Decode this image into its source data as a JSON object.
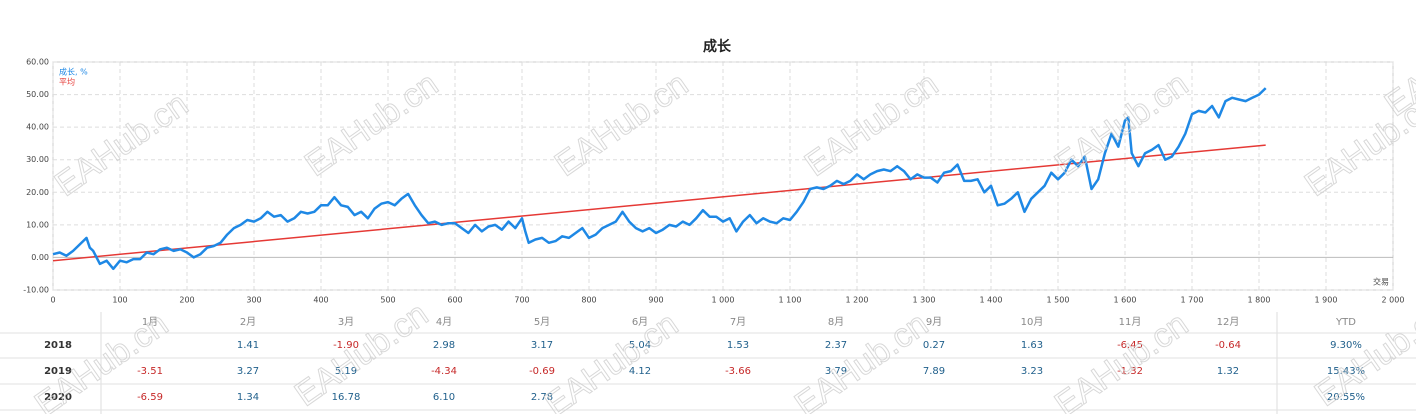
{
  "chart_data": {
    "type": "line",
    "title": "成长",
    "x_label": "交易",
    "xlim": [
      0,
      2000
    ],
    "xticks": [
      0,
      100,
      200,
      300,
      400,
      500,
      600,
      700,
      800,
      900,
      {
        "value": 1000,
        "label": "1 000"
      },
      {
        "value": 1100,
        "label": "1 100"
      },
      {
        "value": 1200,
        "label": "1 200"
      },
      {
        "value": 1300,
        "label": "1 300"
      },
      {
        "value": 1400,
        "label": "1 400"
      },
      {
        "value": 1500,
        "label": "1 500"
      },
      {
        "value": 1600,
        "label": "1 600"
      },
      {
        "value": 1700,
        "label": "1 700"
      },
      {
        "value": 1800,
        "label": "1 800"
      },
      {
        "value": 1900,
        "label": "1 900"
      },
      {
        "value": 2000,
        "label": "2 000"
      }
    ],
    "ylim": [
      -10,
      60
    ],
    "yticks": [
      {
        "value": -10,
        "label": "-10.00"
      },
      {
        "value": 0,
        "label": "0.00"
      },
      {
        "value": 10,
        "label": "10.00"
      },
      {
        "value": 20,
        "label": "20.00"
      },
      {
        "value": 30,
        "label": "30.00"
      },
      {
        "value": 40,
        "label": "40.00"
      },
      {
        "value": 50,
        "label": "50.00"
      },
      {
        "value": 60,
        "label": "60.00"
      }
    ],
    "grid": true,
    "legend": "upper left",
    "series": [
      {
        "name": "成长, %",
        "color": "#1e88e5",
        "x": [
          0,
          10,
          20,
          30,
          40,
          50,
          55,
          60,
          70,
          80,
          90,
          100,
          110,
          120,
          130,
          140,
          150,
          160,
          170,
          180,
          190,
          200,
          210,
          220,
          230,
          240,
          250,
          260,
          270,
          280,
          290,
          300,
          310,
          320,
          330,
          340,
          350,
          360,
          370,
          380,
          390,
          400,
          410,
          420,
          430,
          440,
          450,
          460,
          470,
          480,
          490,
          500,
          510,
          520,
          530,
          540,
          550,
          560,
          570,
          580,
          590,
          600,
          610,
          620,
          630,
          640,
          650,
          660,
          670,
          680,
          690,
          700,
          705,
          710,
          720,
          730,
          740,
          750,
          760,
          770,
          780,
          790,
          800,
          810,
          820,
          830,
          840,
          850,
          860,
          870,
          880,
          890,
          900,
          910,
          920,
          930,
          940,
          950,
          960,
          970,
          980,
          990,
          1000,
          1010,
          1020,
          1030,
          1040,
          1050,
          1060,
          1070,
          1080,
          1090,
          1100,
          1110,
          1120,
          1130,
          1140,
          1150,
          1160,
          1170,
          1180,
          1190,
          1200,
          1210,
          1220,
          1230,
          1240,
          1250,
          1260,
          1270,
          1280,
          1290,
          1300,
          1310,
          1320,
          1330,
          1340,
          1350,
          1360,
          1370,
          1380,
          1390,
          1400,
          1410,
          1420,
          1430,
          1440,
          1450,
          1460,
          1470,
          1480,
          1490,
          1500,
          1510,
          1520,
          1530,
          1540,
          1550,
          1560,
          1570,
          1580,
          1590,
          1600,
          1605,
          1610,
          1620,
          1630,
          1640,
          1650,
          1660,
          1670,
          1680,
          1690,
          1700,
          1710,
          1720,
          1730,
          1740,
          1750,
          1760,
          1770,
          1780,
          1790,
          1800,
          1810
        ],
        "values": [
          1,
          1.5,
          0.5,
          2,
          4,
          6,
          3,
          2,
          -2,
          -1,
          -3.5,
          -1,
          -1.5,
          -0.5,
          -0.5,
          1.5,
          1,
          2.5,
          3,
          2,
          2.5,
          1.5,
          0,
          1,
          3,
          3.5,
          4.5,
          7,
          9,
          10,
          11.5,
          11,
          12,
          14,
          12.5,
          13,
          11,
          12,
          14,
          13.5,
          14,
          16,
          16,
          18.5,
          16,
          15.5,
          13,
          14,
          12,
          15,
          16.5,
          17,
          16,
          18,
          19.5,
          16,
          13,
          10.5,
          11,
          10,
          10.5,
          10.5,
          9,
          7.5,
          10,
          8,
          9.5,
          10,
          8.5,
          11,
          9,
          12,
          8,
          4.5,
          5.5,
          6,
          4.5,
          5,
          6.5,
          6,
          7.5,
          9,
          6,
          7,
          9,
          10,
          11,
          14,
          11,
          9,
          8,
          9,
          7.5,
          8.5,
          10,
          9.5,
          11,
          10,
          12,
          14.5,
          12.5,
          12.5,
          11,
          12,
          8,
          11,
          13,
          10.5,
          12,
          11,
          10.5,
          12,
          11.5,
          14,
          17,
          21,
          21.5,
          21,
          22,
          23.5,
          22.5,
          23.5,
          25.5,
          24,
          25.5,
          26.5,
          27,
          26.5,
          28,
          26.5,
          24,
          25.5,
          24.5,
          24.5,
          23,
          26,
          26.5,
          28.5,
          23.5,
          23.5,
          24,
          20,
          22,
          16,
          16.5,
          18,
          20,
          14,
          18,
          20,
          22,
          26,
          24,
          26,
          30,
          28,
          31,
          21,
          24,
          32,
          38,
          34,
          42,
          43,
          32,
          28,
          32,
          33,
          34.5,
          30,
          31,
          34,
          38,
          44,
          45,
          44.5,
          46.5,
          43,
          48,
          49,
          48.5,
          48,
          49,
          50,
          52
        ]
      },
      {
        "name": "平均",
        "color": "#e53935",
        "x": [
          0,
          1810
        ],
        "values": [
          -1,
          34.5
        ]
      }
    ]
  },
  "watermark": "EAHub.cn",
  "table": {
    "header": [
      "1月",
      "2月",
      "3月",
      "4月",
      "5月",
      "6月",
      "7月",
      "8月",
      "9月",
      "10月",
      "11月",
      "12月",
      "YTD"
    ],
    "rows": [
      {
        "label": "2018",
        "cells": [
          null,
          "1.41",
          "-1.90",
          "2.98",
          "3.17",
          "5.04",
          "1.53",
          "2.37",
          "0.27",
          "1.63",
          "-6.45",
          "-0.64",
          "9.30%"
        ]
      },
      {
        "label": "2019",
        "cells": [
          "-3.51",
          "3.27",
          "5.19",
          "-4.34",
          "-0.69",
          "4.12",
          "-3.66",
          "3.79",
          "7.89",
          "3.23",
          "-1.32",
          "1.32",
          "15.43%"
        ]
      },
      {
        "label": "2020",
        "cells": [
          "-6.59",
          "1.34",
          "16.78",
          "6.10",
          "2.78",
          null,
          null,
          null,
          null,
          null,
          null,
          null,
          "20.55%"
        ]
      }
    ]
  }
}
